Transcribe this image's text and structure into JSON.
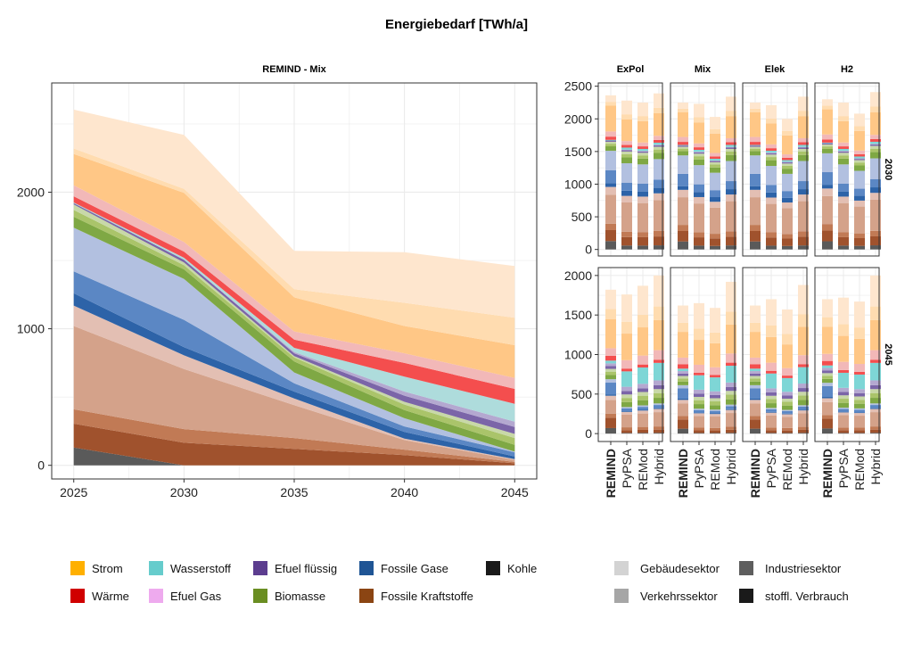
{
  "chart_data": {
    "title": "Energiebedarf [TWh/a]",
    "legend": {
      "placement": "bottom",
      "carriers": [
        {
          "name": "Strom",
          "color": "#FFB000"
        },
        {
          "name": "Wärme",
          "color": "#D00000"
        },
        {
          "name": "Wasserstoff",
          "color": "#66CCCC"
        },
        {
          "name": "Efuel Gas",
          "color": "#EEAAEE"
        },
        {
          "name": "Efuel flüssig",
          "color": "#5C3D8F"
        },
        {
          "name": "Biomasse",
          "color": "#6A8E22"
        },
        {
          "name": "Fossile Gase",
          "color": "#1F5595"
        },
        {
          "name": "Fossile Kraftstoffe",
          "color": "#8B4513"
        },
        {
          "name": "Kohle",
          "color": "#1A1A1A"
        }
      ],
      "sectors": [
        {
          "name": "Gebäudesektor",
          "color": "#D3D3D3"
        },
        {
          "name": "Verkehrssektor",
          "color": "#A6A6A6"
        },
        {
          "name": "Industriesektor",
          "color": "#5E5E5E"
        },
        {
          "name": "stoffl. Verbrauch",
          "color": "#1A1A1A"
        }
      ]
    },
    "area": {
      "type": "area",
      "title": "REMIND - Mix",
      "x": [
        2025,
        2030,
        2035,
        2040,
        2045
      ],
      "ylim": [
        -100,
        2800
      ],
      "yticks": [
        0,
        1000,
        2000
      ],
      "grid": true,
      "layers": [
        {
          "c": "#5A5A5A",
          "v": [
            130,
            0,
            0,
            0,
            0
          ]
        },
        {
          "c": "#A0522D",
          "v": [
            175,
            165,
            120,
            75,
            15
          ]
        },
        {
          "c": "#C17A55",
          "v": [
            105,
            100,
            80,
            40,
            10
          ]
        },
        {
          "c": "#D4A28A",
          "v": [
            610,
            440,
            240,
            70,
            15
          ]
        },
        {
          "c": "#E3BFB3",
          "v": [
            150,
            100,
            50,
            10,
            5
          ]
        },
        {
          "c": "#2D63A8",
          "v": [
            90,
            60,
            50,
            50,
            20
          ]
        },
        {
          "c": "#5B87C4",
          "v": [
            160,
            200,
            60,
            40,
            30
          ]
        },
        {
          "c": "#B2C0E0",
          "v": [
            320,
            300,
            80,
            60,
            5
          ]
        },
        {
          "c": "#7FA844",
          "v": [
            80,
            70,
            80,
            60,
            50
          ]
        },
        {
          "c": "#AAC46A",
          "v": [
            50,
            30,
            30,
            40,
            50
          ]
        },
        {
          "c": "#C8D8A8",
          "v": [
            40,
            20,
            10,
            20,
            30
          ]
        },
        {
          "c": "#7B65A8",
          "v": [
            10,
            20,
            20,
            45,
            50
          ]
        },
        {
          "c": "#B4A8D0",
          "v": [
            0,
            0,
            10,
            30,
            40
          ]
        },
        {
          "c": "#AEDCDC",
          "v": [
            5,
            15,
            30,
            110,
            130
          ]
        },
        {
          "c": "#F44E4E",
          "v": [
            45,
            45,
            60,
            100,
            110
          ]
        },
        {
          "c": "#F2B8B8",
          "v": [
            80,
            70,
            60,
            70,
            80
          ]
        },
        {
          "c": "#FFC786",
          "v": [
            230,
            360,
            250,
            200,
            240
          ]
        },
        {
          "c": "#FFDCB0",
          "v": [
            40,
            30,
            60,
            170,
            200
          ]
        },
        {
          "c": "#FEE6CE",
          "v": [
            285,
            395,
            280,
            370,
            380
          ]
        }
      ]
    },
    "facets": {
      "type": "bar",
      "columns": [
        "ExPol",
        "Mix",
        "Elek",
        "H2"
      ],
      "rows": [
        "2030",
        "2045"
      ],
      "categories": [
        "REMIND",
        "PyPSA",
        "REMod",
        "Hybrid"
      ],
      "ylims": [
        [
          -100,
          2550
        ],
        [
          -100,
          2100
        ]
      ],
      "yticks": [
        [
          0,
          500,
          1000,
          1500,
          2000,
          2500
        ],
        [
          0,
          500,
          1000,
          1500,
          2000
        ]
      ],
      "layer_colors": [
        "#5A5A5A",
        "#A0522D",
        "#C17A55",
        "#D4A28A",
        "#E3BFB3",
        "#2D63A8",
        "#5B87C4",
        "#B2C0E0",
        "#7FA844",
        "#AAC46A",
        "#C8D8A8",
        "#7B65A8",
        "#B4A8D0",
        "#7ED6D6",
        "#F44E4E",
        "#F2B8B8",
        "#FFC786",
        "#FFDCB0",
        "#FEE6CE"
      ],
      "profiles": {
        "r30": [
          130,
          170,
          100,
          450,
          120,
          60,
          200,
          300,
          70,
          40,
          30,
          20,
          0,
          10,
          50,
          80,
          400,
          60,
          100
        ],
        "b30": [
          60,
          130,
          80,
          450,
          100,
          80,
          120,
          300,
          90,
          50,
          40,
          20,
          10,
          30,
          40,
          60,
          330,
          80,
          210
        ],
        "r45": [
          80,
          150,
          60,
          200,
          60,
          20,
          170,
          50,
          60,
          50,
          40,
          40,
          40,
          40,
          70,
          110,
          420,
          150,
          280
        ],
        "b45": [
          10,
          40,
          40,
          180,
          40,
          10,
          40,
          20,
          70,
          60,
          50,
          50,
          60,
          220,
          40,
          120,
          380,
          170,
          390
        ]
      },
      "totals": {
        "2030": [
          [
            2360,
            2280,
            2250,
            2390
          ],
          [
            2250,
            2230,
            2030,
            2340
          ],
          [
            2250,
            2210,
            2000,
            2340
          ],
          [
            2300,
            2250,
            2080,
            2410
          ]
        ],
        "2045": [
          [
            1820,
            1760,
            1870,
            2000
          ],
          [
            1620,
            1650,
            1590,
            1920
          ],
          [
            1620,
            1700,
            1570,
            1880
          ],
          [
            1700,
            1720,
            1670,
            2000
          ]
        ]
      }
    }
  }
}
